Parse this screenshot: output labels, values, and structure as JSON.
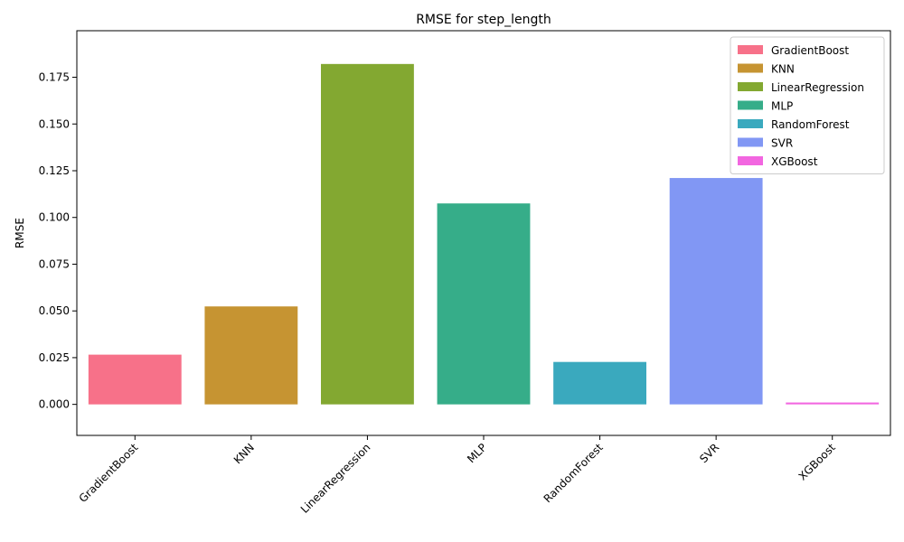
{
  "chart_data": {
    "type": "bar",
    "title": "RMSE for step_length",
    "xlabel": "",
    "ylabel": "RMSE",
    "ylim": [
      -0.0166,
      0.1999
    ],
    "yticks": [
      0.0,
      0.025,
      0.05,
      0.075,
      0.1,
      0.125,
      0.15,
      0.175
    ],
    "ytick_labels": [
      "0.000",
      "0.025",
      "0.050",
      "0.075",
      "0.100",
      "0.125",
      "0.150",
      "0.175"
    ],
    "categories": [
      "GradientBoost",
      "KNN",
      "LinearRegression",
      "MLP",
      "RandomForest",
      "SVR",
      "XGBoost"
    ],
    "values": [
      0.0266,
      0.0524,
      0.1821,
      0.1075,
      0.0227,
      0.1211,
      0.001
    ],
    "colors": [
      "#f77189",
      "#c69432",
      "#83a831",
      "#36ad89",
      "#3aa9be",
      "#8197f4",
      "#f266e0"
    ],
    "legend": {
      "placement": "top-right",
      "entries": [
        "GradientBoost",
        "KNN",
        "LinearRegression",
        "MLP",
        "RandomForest",
        "SVR",
        "XGBoost"
      ]
    },
    "grid": false
  }
}
